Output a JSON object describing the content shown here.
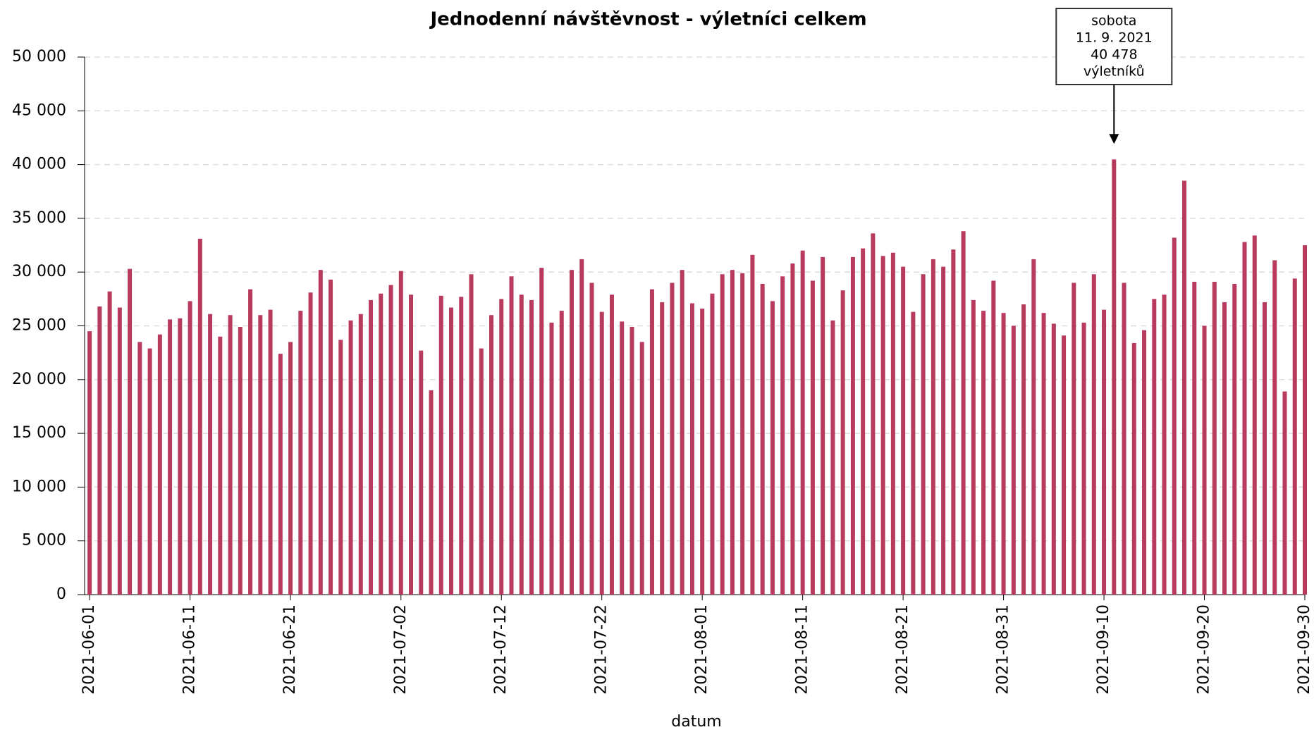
{
  "chart_data": {
    "type": "bar",
    "title": "Jednodenní návštěvnost - výletníci celkem",
    "xlabel": "datum",
    "color": "#b83b5e",
    "grid": true,
    "x": [
      "2021-06-01",
      "2021-06-02",
      "2021-06-03",
      "2021-06-04",
      "2021-06-05",
      "2021-06-06",
      "2021-06-07",
      "2021-06-08",
      "2021-06-09",
      "2021-06-10",
      "2021-06-11",
      "2021-06-12",
      "2021-06-13",
      "2021-06-14",
      "2021-06-15",
      "2021-06-16",
      "2021-06-17",
      "2021-06-18",
      "2021-06-19",
      "2021-06-20",
      "2021-06-21",
      "2021-06-22",
      "2021-06-23",
      "2021-06-24",
      "2021-06-25",
      "2021-06-26",
      "2021-06-27",
      "2021-06-28",
      "2021-06-29",
      "2021-06-30",
      "2021-07-01",
      "2021-07-02",
      "2021-07-03",
      "2021-07-04",
      "2021-07-05",
      "2021-07-06",
      "2021-07-07",
      "2021-07-08",
      "2021-07-09",
      "2021-07-10",
      "2021-07-11",
      "2021-07-12",
      "2021-07-13",
      "2021-07-14",
      "2021-07-15",
      "2021-07-16",
      "2021-07-17",
      "2021-07-18",
      "2021-07-19",
      "2021-07-20",
      "2021-07-21",
      "2021-07-22",
      "2021-07-23",
      "2021-07-24",
      "2021-07-25",
      "2021-07-26",
      "2021-07-27",
      "2021-07-28",
      "2021-07-29",
      "2021-07-30",
      "2021-07-31",
      "2021-08-01",
      "2021-08-02",
      "2021-08-03",
      "2021-08-04",
      "2021-08-05",
      "2021-08-06",
      "2021-08-07",
      "2021-08-08",
      "2021-08-09",
      "2021-08-10",
      "2021-08-11",
      "2021-08-12",
      "2021-08-13",
      "2021-08-14",
      "2021-08-15",
      "2021-08-16",
      "2021-08-17",
      "2021-08-18",
      "2021-08-19",
      "2021-08-20",
      "2021-08-21",
      "2021-08-22",
      "2021-08-23",
      "2021-08-24",
      "2021-08-25",
      "2021-08-26",
      "2021-08-27",
      "2021-08-28",
      "2021-08-29",
      "2021-08-30",
      "2021-08-31",
      "2021-09-01",
      "2021-09-02",
      "2021-09-03",
      "2021-09-04",
      "2021-09-05",
      "2021-09-06",
      "2021-09-07",
      "2021-09-08",
      "2021-09-09",
      "2021-09-10",
      "2021-09-11",
      "2021-09-12",
      "2021-09-13",
      "2021-09-14",
      "2021-09-15",
      "2021-09-16",
      "2021-09-17",
      "2021-09-18",
      "2021-09-19",
      "2021-09-20",
      "2021-09-21",
      "2021-09-22",
      "2021-09-23",
      "2021-09-24",
      "2021-09-25",
      "2021-09-26",
      "2021-09-27",
      "2021-09-28",
      "2021-09-29",
      "2021-09-30"
    ],
    "values": [
      24500,
      26800,
      28200,
      26700,
      30300,
      23500,
      22900,
      24200,
      25600,
      25700,
      27300,
      33100,
      26100,
      24000,
      26000,
      24900,
      28400,
      26000,
      26500,
      22400,
      23500,
      26400,
      28100,
      30200,
      29300,
      23700,
      25500,
      26100,
      27400,
      28000,
      28800,
      30100,
      27900,
      22700,
      19000,
      27800,
      26700,
      27700,
      29800,
      22900,
      26000,
      27500,
      29600,
      27900,
      27400,
      30400,
      25300,
      26400,
      30200,
      31200,
      29000,
      26300,
      27900,
      25400,
      24900,
      23500,
      28400,
      27200,
      29000,
      30200,
      27100,
      26600,
      28000,
      29800,
      30200,
      29900,
      31600,
      28900,
      27300,
      29600,
      30800,
      32000,
      29200,
      31400,
      25500,
      28300,
      31400,
      32200,
      33600,
      31500,
      31800,
      30500,
      26300,
      29800,
      31200,
      30500,
      32100,
      33800,
      27400,
      26400,
      29200,
      26200,
      25000,
      27000,
      31200,
      26200,
      25200,
      24100,
      29000,
      25300,
      29800,
      26500,
      40478,
      29000,
      23400,
      24600,
      27500,
      27900,
      33200,
      38500,
      29100,
      25000,
      29100,
      27200,
      28900,
      32800,
      33400,
      27200,
      31100,
      18900,
      29400,
      32500
    ],
    "xlim": [
      "2021-05-31T12:00Z",
      "2021-09-30T00:00Z"
    ],
    "xticks": [
      "2021-06-01",
      "2021-06-11",
      "2021-06-21",
      "2021-07-02",
      "2021-07-12",
      "2021-07-22",
      "2021-08-01",
      "2021-08-11",
      "2021-08-21",
      "2021-08-31",
      "2021-09-10",
      "2021-09-20",
      "2021-09-30"
    ],
    "ylim": [
      0,
      50000
    ],
    "yticks": [
      0,
      {
        "value": 5000,
        "label": "5 000"
      },
      {
        "value": 10000,
        "label": "10 000"
      },
      {
        "value": 15000,
        "label": "15 000"
      },
      {
        "value": 20000,
        "label": "20 000"
      },
      {
        "value": 25000,
        "label": "25 000"
      },
      {
        "value": 30000,
        "label": "30 000"
      },
      {
        "value": 35000,
        "label": "35 000"
      },
      {
        "value": 40000,
        "label": "40 000"
      },
      {
        "value": 45000,
        "label": "45 000"
      },
      {
        "value": 50000,
        "label": "50 000"
      }
    ],
    "annotation": {
      "text": [
        "sobota",
        "11. 9. 2021",
        "40 478",
        "výletníků"
      ],
      "x": "2021-09-11",
      "y": 40478
    }
  }
}
